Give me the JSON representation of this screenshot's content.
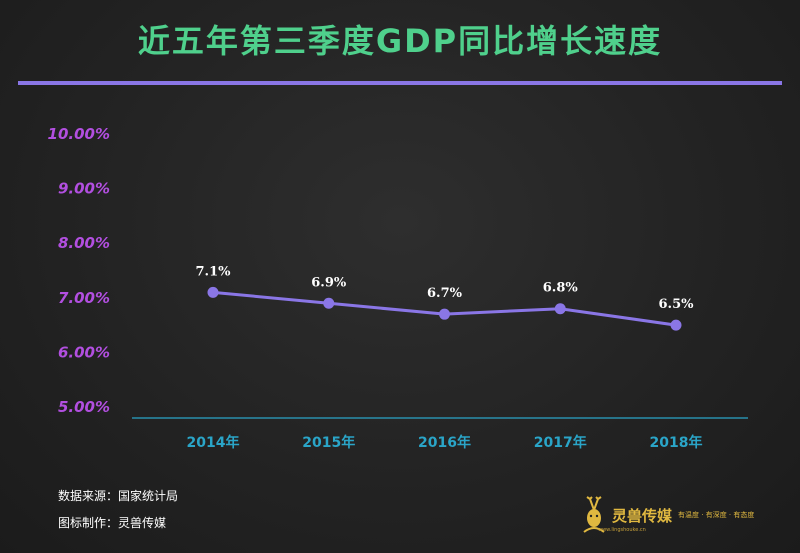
{
  "title": "近五年第三季度GDP同比增长速度",
  "footer": {
    "source": "数据来源：国家统计局",
    "credit": "图标制作：灵兽传媒"
  },
  "logo": {
    "name": "灵兽传媒",
    "slogan": "有温度 · 有深度 · 有态度",
    "url": "www.lingshouke.cn"
  },
  "colors": {
    "title": "#4fd08c",
    "rule": "#8a76e6",
    "line": "#8a76e6",
    "y_tick": "#b24fe0",
    "x_tick": "#2aa5c8",
    "axis": "#2aa5c8"
  },
  "chart_data": {
    "type": "line",
    "title": "近五年第三季度GDP同比增长速度",
    "xlabel": "",
    "ylabel": "",
    "categories": [
      "2014年",
      "2015年",
      "2016年",
      "2017年",
      "2018年"
    ],
    "values": [
      7.1,
      6.9,
      6.7,
      6.8,
      6.5
    ],
    "data_labels": [
      "7.1%",
      "6.9%",
      "6.7%",
      "6.8%",
      "6.5%"
    ],
    "y_ticks": [
      {
        "value": 5,
        "label": "5.00%"
      },
      {
        "value": 6,
        "label": "6.00%"
      },
      {
        "value": 7,
        "label": "7.00%"
      },
      {
        "value": 8,
        "label": "8.00%"
      },
      {
        "value": 9,
        "label": "9.00%"
      },
      {
        "value": 10,
        "label": "10.00%"
      }
    ],
    "ylim": [
      5,
      10
    ],
    "grid": false,
    "legend": "none"
  }
}
